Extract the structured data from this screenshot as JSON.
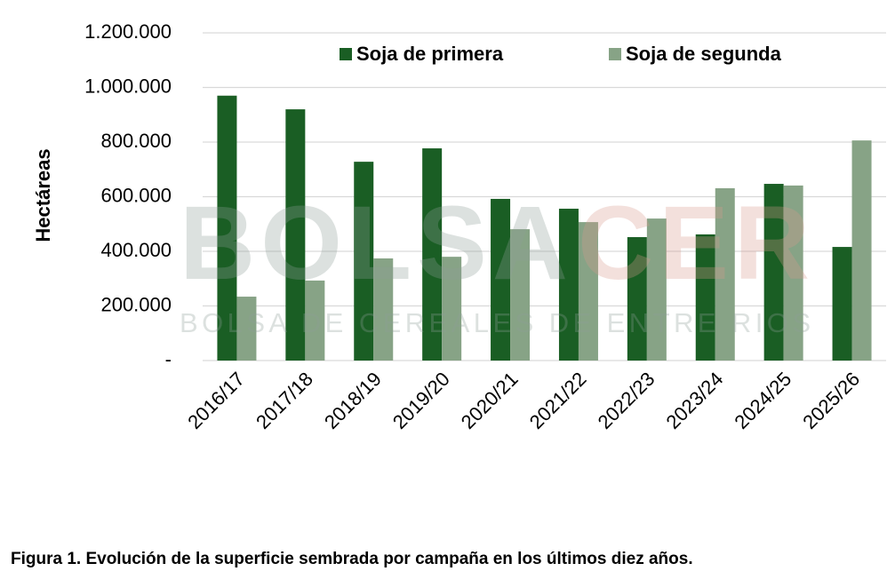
{
  "chart_data": {
    "type": "bar",
    "y_label": "Hectáreas",
    "caption": "Figura 1. Evolución de la superficie sembrada por campaña en los últimos diez años.",
    "watermark": {
      "left": "BOLSA",
      "right": "CER",
      "subtitle": "BOLSA DE CEREALES DE ENTRE RIOS"
    },
    "categories": [
      "2016/17",
      "2017/18",
      "2018/19",
      "2019/20",
      "2020/21",
      "2021/22",
      "2022/23",
      "2023/24",
      "2024/25",
      "2025/26"
    ],
    "series": [
      {
        "name": "Soja de primera",
        "color": "#1a5e24",
        "values": [
          970000,
          920000,
          728000,
          777000,
          592000,
          556000,
          452000,
          462000,
          647000,
          416000
        ]
      },
      {
        "name": "Soja de segunda",
        "color": "#87a386",
        "values": [
          234000,
          293000,
          374000,
          380000,
          481000,
          507000,
          520000,
          631000,
          641000,
          806000
        ]
      }
    ],
    "ylim": [
      0,
      1200000
    ],
    "yticks": [
      {
        "value": 0,
        "label": "-"
      },
      {
        "value": 200000,
        "label": "200.000"
      },
      {
        "value": 400000,
        "label": "400.000"
      },
      {
        "value": 600000,
        "label": "600.000"
      },
      {
        "value": 800000,
        "label": "800.000"
      },
      {
        "value": 1000000,
        "label": "1.000.000"
      },
      {
        "value": 1200000,
        "label": "1.200.000"
      }
    ],
    "grid": true,
    "legend": "top"
  }
}
